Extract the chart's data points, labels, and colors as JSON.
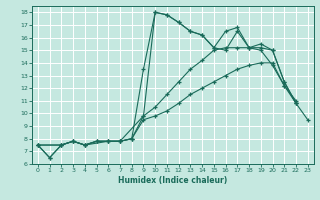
{
  "xlabel": "Humidex (Indice chaleur)",
  "bg_color": "#c5e8e0",
  "grid_color": "#ffffff",
  "line_color": "#1a6b5a",
  "xlim": [
    -0.5,
    23.5
  ],
  "ylim": [
    6,
    18.5
  ],
  "xticks": [
    0,
    1,
    2,
    3,
    4,
    5,
    6,
    7,
    8,
    9,
    10,
    11,
    12,
    13,
    14,
    15,
    16,
    17,
    18,
    19,
    20,
    21,
    22,
    23
  ],
  "yticks": [
    6,
    7,
    8,
    9,
    10,
    11,
    12,
    13,
    14,
    15,
    16,
    17,
    18
  ],
  "series1_x": [
    0,
    1,
    2,
    3,
    4,
    5,
    6,
    7,
    8,
    9,
    10,
    11,
    12,
    13,
    14,
    15,
    16,
    17,
    18,
    19,
    20,
    21,
    22,
    23
  ],
  "series1_y": [
    7.5,
    6.5,
    7.5,
    7.8,
    7.5,
    7.8,
    7.8,
    7.8,
    8.0,
    9.5,
    9.8,
    10.2,
    10.8,
    11.5,
    12.0,
    12.5,
    13.0,
    13.5,
    13.8,
    14.0,
    14.0,
    12.2,
    10.8,
    9.5
  ],
  "series2_x": [
    0,
    1,
    2,
    3,
    4,
    5,
    6,
    7,
    8,
    9,
    10,
    11,
    12,
    13,
    14,
    15,
    16,
    17,
    18,
    19,
    20,
    21,
    22
  ],
  "series2_y": [
    7.5,
    6.5,
    7.5,
    7.8,
    7.5,
    7.8,
    7.8,
    7.8,
    8.0,
    9.8,
    10.5,
    11.5,
    12.5,
    13.5,
    14.2,
    15.0,
    15.2,
    15.2,
    15.2,
    15.0,
    13.8,
    12.2,
    11.0
  ],
  "series3_x": [
    0,
    2,
    3,
    4,
    5,
    6,
    7,
    8,
    9,
    10,
    11,
    12,
    13,
    14,
    15,
    16,
    17,
    18,
    19,
    20,
    21,
    22
  ],
  "series3_y": [
    7.5,
    7.5,
    7.8,
    7.5,
    7.8,
    7.8,
    7.8,
    8.0,
    13.5,
    18.0,
    17.8,
    17.2,
    16.5,
    16.2,
    15.2,
    15.0,
    16.5,
    15.2,
    15.2,
    15.0,
    12.5,
    10.8
  ],
  "series4_x": [
    0,
    2,
    3,
    4,
    6,
    7,
    9,
    10,
    11,
    12,
    13,
    14,
    15,
    16,
    17,
    18,
    19,
    20,
    21,
    22
  ],
  "series4_y": [
    7.5,
    7.5,
    7.8,
    7.5,
    7.8,
    7.8,
    9.8,
    18.0,
    17.8,
    17.2,
    16.5,
    16.2,
    15.2,
    16.5,
    16.8,
    15.2,
    15.5,
    15.0,
    12.5,
    10.8
  ]
}
